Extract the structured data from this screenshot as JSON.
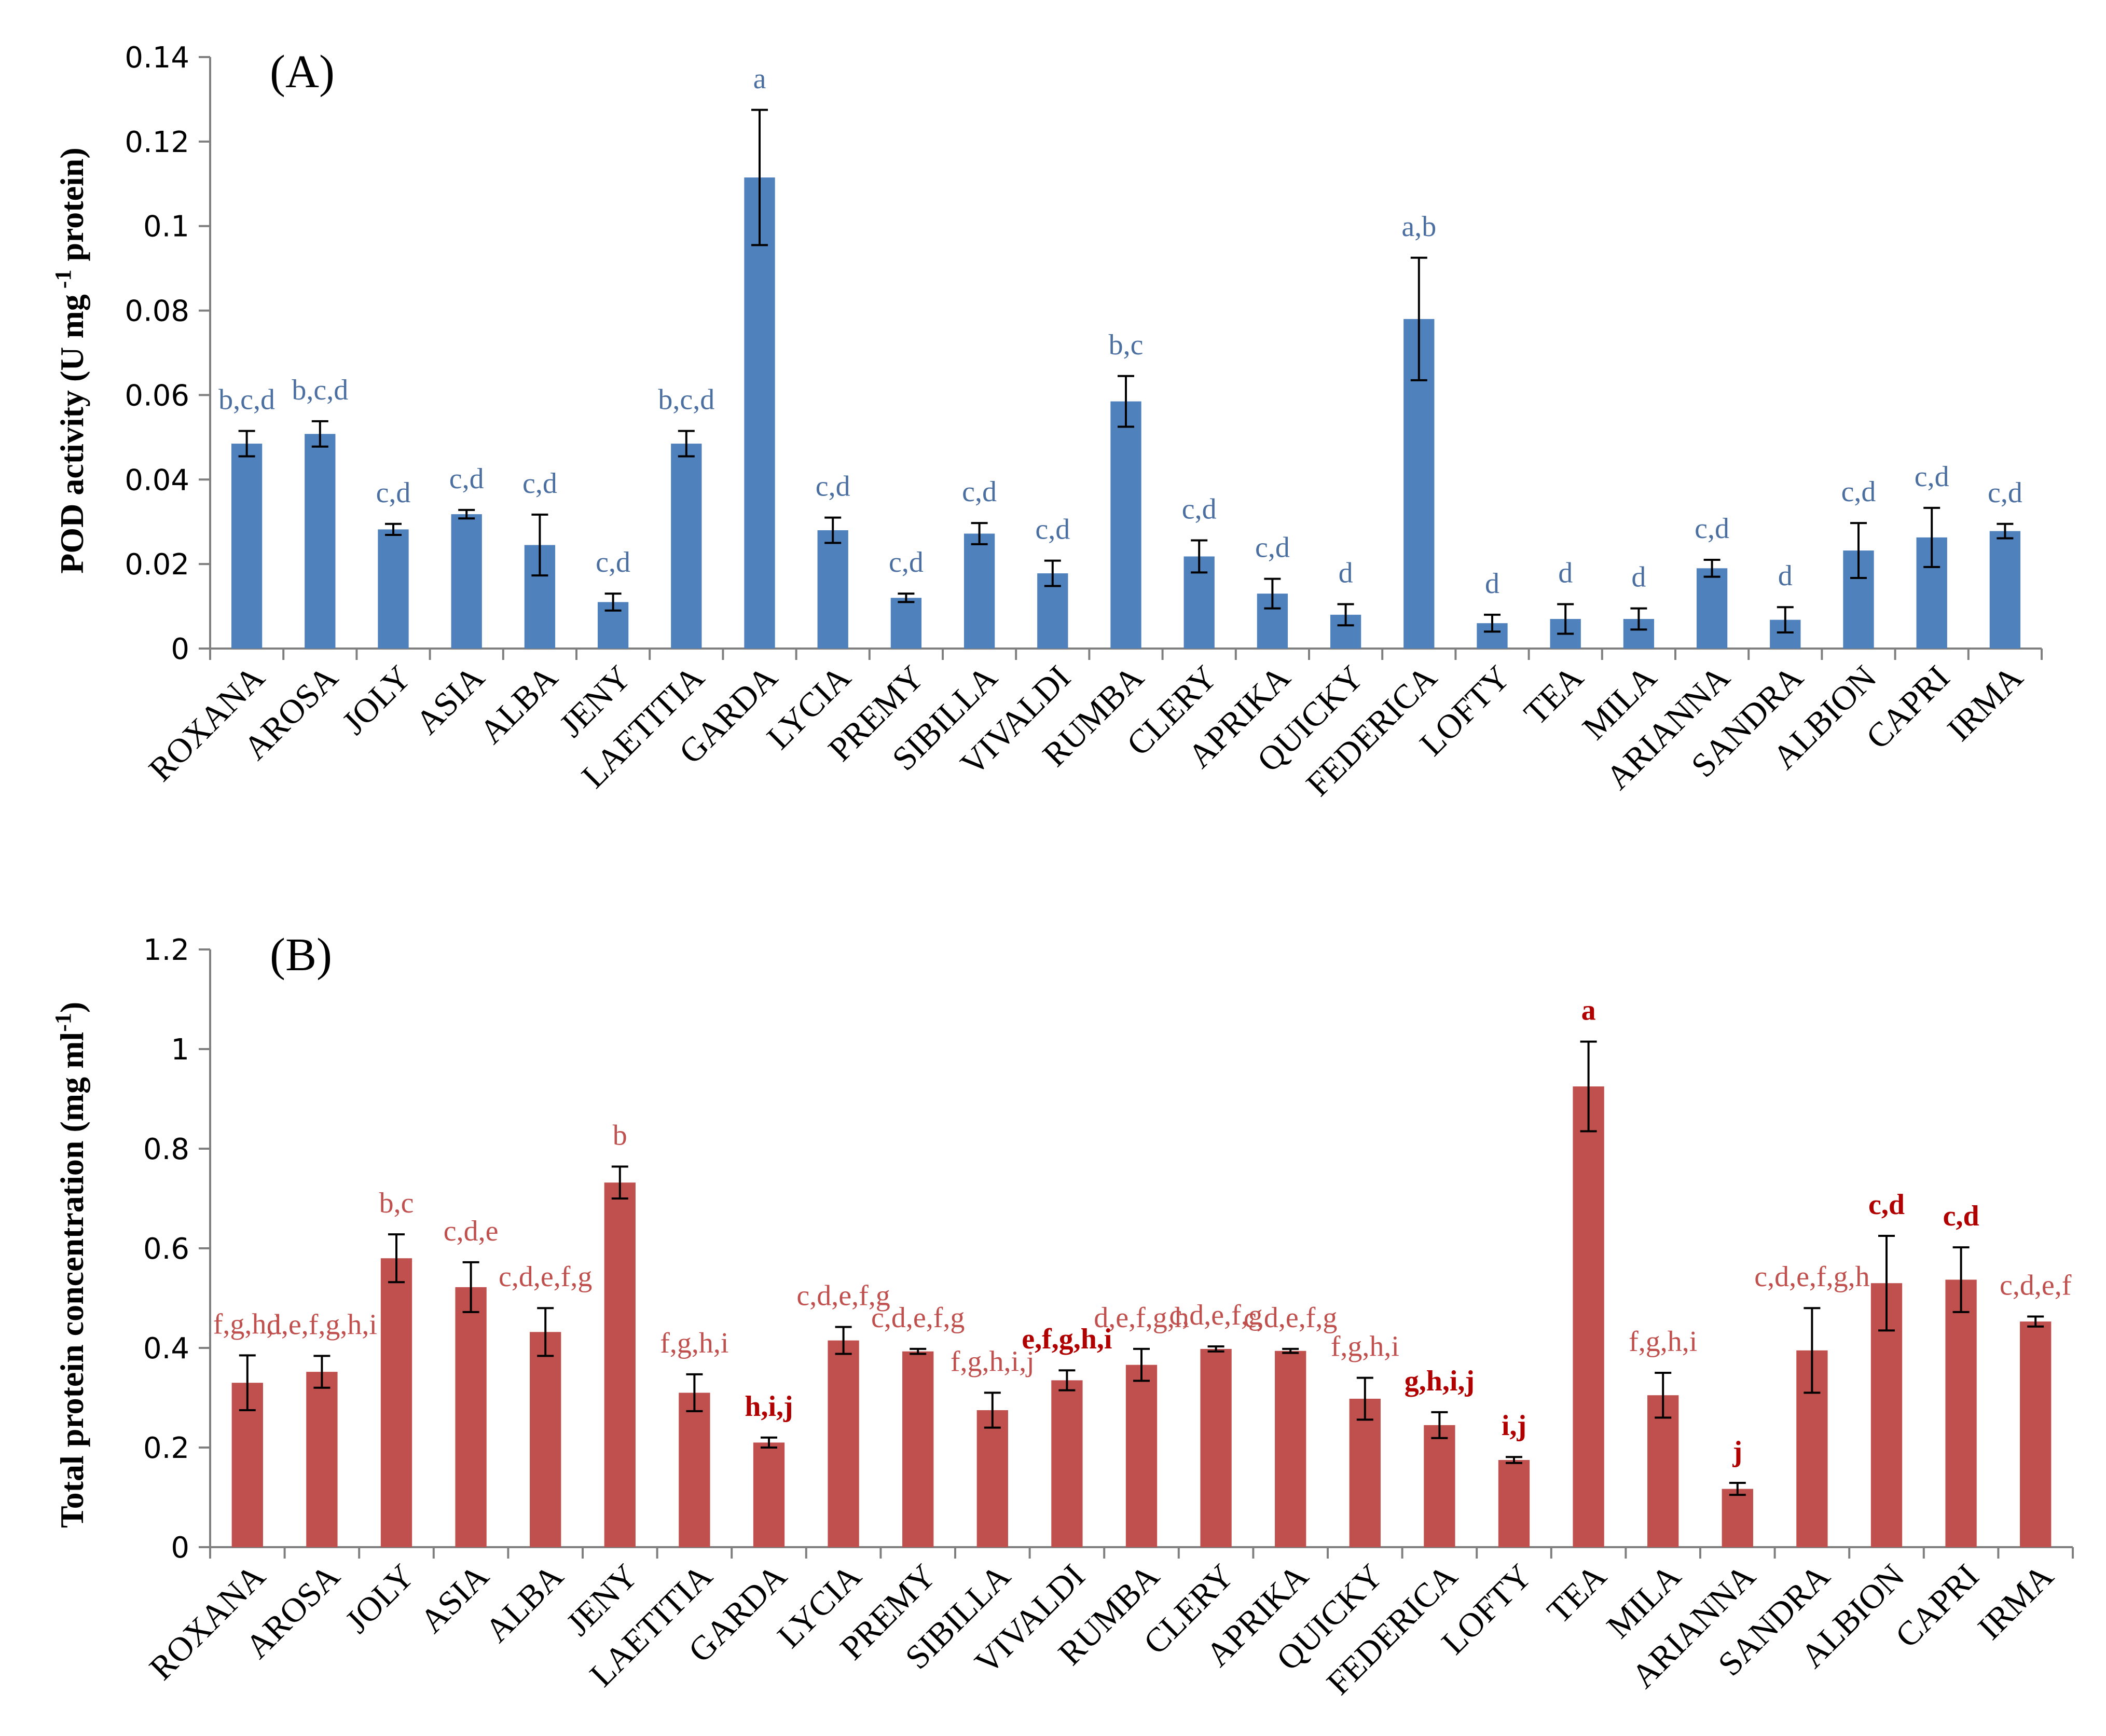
{
  "chart_data": [
    {
      "type": "bar",
      "panel_label": "(A)",
      "title": "",
      "xlabel": "",
      "ylabel": "POD activity (U mg -1 protein)",
      "ylabel_main": "POD activity (U mg",
      "ylabel_sup": " -1",
      "ylabel_tail": " protein)",
      "ylim": [
        0,
        0.14
      ],
      "yticks": [
        0,
        0.02,
        0.04,
        0.06,
        0.08,
        0.1,
        0.12,
        0.14
      ],
      "ytick_labels": [
        "0",
        "0.02",
        "0.04",
        "0.06",
        "0.08",
        "0.1",
        "0.12",
        "0.14"
      ],
      "grid": false,
      "bar_color": "#4f81bd",
      "label_color": "#4a6fa0",
      "categories": [
        "ROXANA",
        "AROSA",
        "JOLY",
        "ASIA",
        "ALBA",
        "JENY",
        "LAETITIA",
        "GARDA",
        "LYCIA",
        "PREMY",
        "SIBILLA",
        "VIVALDI",
        "RUMBA",
        "CLERY",
        "APRIKA",
        "QUICKY",
        "FEDERICA",
        "LOFTY",
        "TEA",
        "MILA",
        "ARIANNA",
        "SANDRA",
        "ALBION",
        "CAPRI",
        "IRMA"
      ],
      "values": [
        0.0485,
        0.0508,
        0.0282,
        0.0318,
        0.0245,
        0.011,
        0.0485,
        0.1115,
        0.028,
        0.012,
        0.0272,
        0.0178,
        0.0585,
        0.0218,
        0.013,
        0.008,
        0.078,
        0.006,
        0.007,
        0.007,
        0.019,
        0.0068,
        0.0232,
        0.0263,
        0.0278
      ],
      "errors": [
        0.003,
        0.003,
        0.0013,
        0.001,
        0.0072,
        0.002,
        0.003,
        0.016,
        0.003,
        0.001,
        0.0025,
        0.003,
        0.006,
        0.0038,
        0.0035,
        0.0025,
        0.0145,
        0.002,
        0.0035,
        0.0025,
        0.002,
        0.003,
        0.0065,
        0.007,
        0.0017
      ],
      "sig_labels": [
        "b,c,d",
        "b,c,d",
        "c,d",
        "c,d",
        "c,d",
        "c,d",
        "b,c,d",
        "a",
        "c,d",
        "c,d",
        "c,d",
        "c,d",
        "b,c",
        "c,d",
        "c,d",
        "d",
        "a,b",
        "d",
        "d",
        "d",
        "c,d",
        "d",
        "c,d",
        "c,d",
        "c,d"
      ]
    },
    {
      "type": "bar",
      "panel_label": "(B)",
      "title": "",
      "xlabel": "",
      "ylabel": "Total protein concentration (mg ml-1)",
      "ylabel_main": "Total protein concentration (mg ml",
      "ylabel_sup": "-1",
      "ylabel_tail": ")",
      "ylim": [
        0,
        1.2
      ],
      "yticks": [
        0,
        0.2,
        0.4,
        0.6,
        0.8,
        1,
        1.2
      ],
      "ytick_labels": [
        "0",
        "0.2",
        "0.4",
        "0.6",
        "0.8",
        "1",
        "1.2"
      ],
      "grid": false,
      "bar_color": "#c0504d",
      "label_color": "#c0504d",
      "label_color_strong": "#b00000",
      "categories": [
        "ROXANA",
        "AROSA",
        "JOLY",
        "ASIA",
        "ALBA",
        "JENY",
        "LAETITIA",
        "GARDA",
        "LYCIA",
        "PREMY",
        "SIBILLA",
        "VIVALDI",
        "RUMBA",
        "CLERY",
        "APRIKA",
        "QUICKY",
        "FEDERICA",
        "LOFTY",
        "TEA",
        "MILA",
        "ARIANNA",
        "SANDRA",
        "ALBION",
        "CAPRI",
        "IRMA"
      ],
      "values": [
        0.33,
        0.352,
        0.58,
        0.522,
        0.432,
        0.732,
        0.31,
        0.21,
        0.415,
        0.393,
        0.275,
        0.335,
        0.366,
        0.398,
        0.394,
        0.298,
        0.245,
        0.175,
        0.925,
        0.305,
        0.117,
        0.395,
        0.53,
        0.537,
        0.453
      ],
      "errors": [
        0.055,
        0.032,
        0.048,
        0.05,
        0.048,
        0.032,
        0.037,
        0.01,
        0.027,
        0.005,
        0.035,
        0.02,
        0.032,
        0.005,
        0.004,
        0.042,
        0.026,
        0.006,
        0.09,
        0.045,
        0.012,
        0.085,
        0.095,
        0.065,
        0.01
      ],
      "sig_labels": [
        "f,g,h,i",
        "d,e,f,g,h,i",
        "b,c",
        "c,d,e",
        "c,d,e,f,g",
        "b",
        "f,g,h,i",
        "h,i,j",
        "c,d,e,f,g",
        "c,d,e,f,g",
        "f,g,h,i,j",
        "e,f,g,h,i",
        "d,e,f,g,h",
        "c,d,e,f,g",
        "c,d,e,f,g",
        "f,g,h,i",
        "g,h,i,j",
        "i,j",
        "a",
        "f,g,h,i",
        "j",
        "c,d,e,f,g,h",
        "c,d",
        "c,d",
        "c,d,e,f"
      ],
      "sig_strong": [
        false,
        false,
        false,
        false,
        false,
        false,
        false,
        true,
        false,
        false,
        false,
        true,
        false,
        false,
        false,
        false,
        true,
        true,
        true,
        false,
        true,
        false,
        true,
        true,
        false
      ]
    }
  ]
}
